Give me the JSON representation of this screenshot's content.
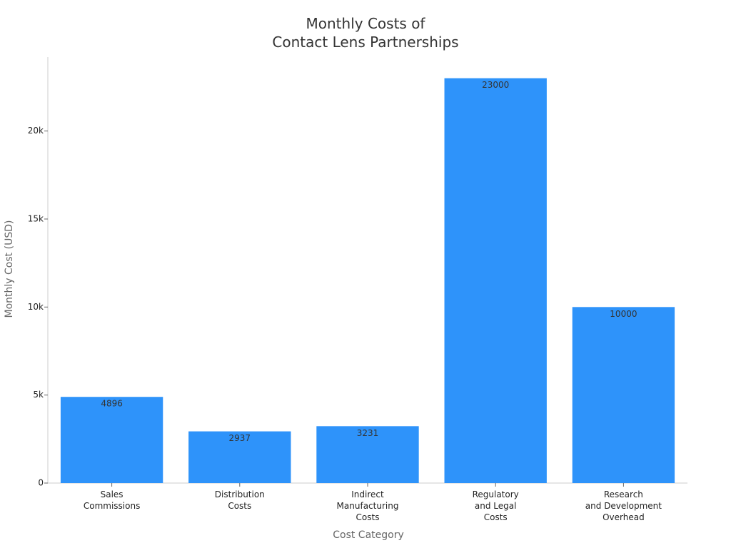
{
  "chart_data": {
    "type": "bar",
    "title": "Monthly Costs of\nContact Lens Partnerships",
    "x_label": "Cost Category",
    "y_label": "Monthly Cost (USD)",
    "categories": [
      "Sales\nCommissions",
      "Distribution\nCosts",
      "Indirect\nManufacturing\nCosts",
      "Regulatory\nand Legal\nCosts",
      "Research\nand Development\nOverhead"
    ],
    "values": [
      4896,
      2937,
      3231,
      23000,
      10000
    ],
    "color": "#2e93fa",
    "ylim": [
      0,
      24200
    ],
    "yticks": [
      0,
      {
        "value": 5000,
        "label": "5k"
      },
      {
        "value": 10000,
        "label": "10k"
      },
      {
        "value": 15000,
        "label": "15k"
      },
      {
        "value": 20000,
        "label": "20k"
      }
    ],
    "grid": false
  }
}
